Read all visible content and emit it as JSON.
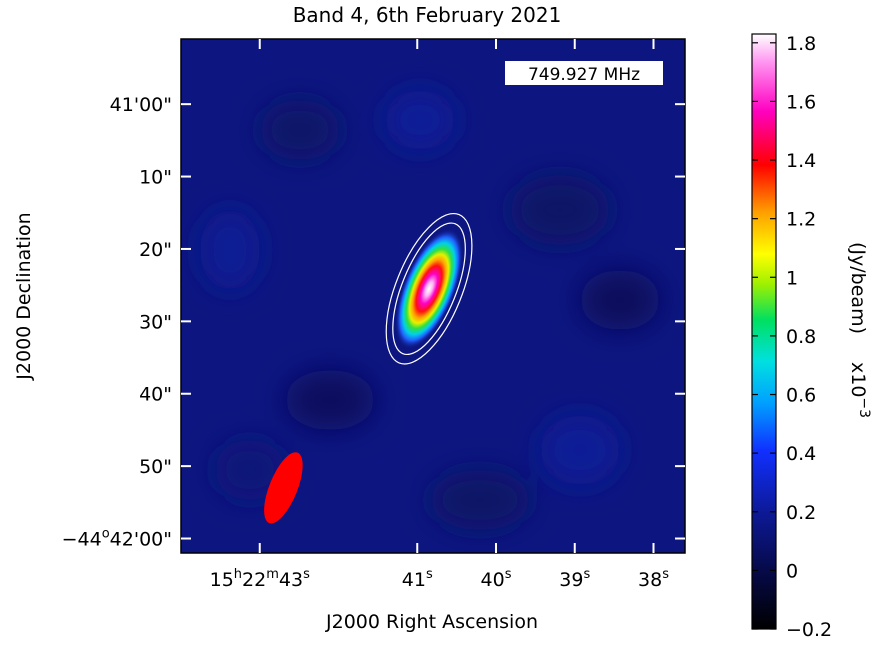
{
  "chart_data": {
    "type": "heatmap",
    "title": "Band 4, 6th February 2021",
    "annotation": "749.927 MHz",
    "xlabel": "J2000 Right Ascension",
    "ylabel": "J2000 Declination",
    "x_ticks": [
      {
        "h": "15",
        "m": "22",
        "s": "43",
        "value_sec": 43
      },
      {
        "s": "41",
        "value_sec": 41
      },
      {
        "s": "40",
        "value_sec": 40
      },
      {
        "s": "39",
        "value_sec": 39
      },
      {
        "s": "38",
        "value_sec": 38
      }
    ],
    "y_ticks": [
      {
        "label": "41'00\"",
        "value_arcsec": 0
      },
      {
        "label": "10\"",
        "value_arcsec": 10
      },
      {
        "label": "20\"",
        "value_arcsec": 20
      },
      {
        "label": "30\"",
        "value_arcsec": 30
      },
      {
        "label": "40\"",
        "value_arcsec": 40
      },
      {
        "label": "50\"",
        "value_arcsec": 50
      },
      {
        "label_deg": "−44",
        "label_deg_sup": "o",
        "label_rest": "42'00\"",
        "value_arcsec": 60
      }
    ],
    "x_range_sec": [
      44.0,
      37.6
    ],
    "y_range_arcsec": [
      -9,
      62
    ],
    "colorbar": {
      "label": "(Jy/beam)",
      "scale": "x10",
      "scale_exp": "−3",
      "range": [
        -0.2,
        1.83
      ],
      "ticks": [
        {
          "label": "1.8",
          "value": 1.8
        },
        {
          "label": "1.6",
          "value": 1.6
        },
        {
          "label": "1.4",
          "value": 1.4
        },
        {
          "label": "1.2",
          "value": 1.2
        },
        {
          "label": "1",
          "value": 1.0
        },
        {
          "label": "0.8",
          "value": 0.8
        },
        {
          "label": "0.6",
          "value": 0.6
        },
        {
          "label": "0.4",
          "value": 0.4
        },
        {
          "label": "0.2",
          "value": 0.2
        },
        {
          "label": "0",
          "value": 0.0
        },
        {
          "label": "−0.2",
          "value": -0.2
        }
      ]
    },
    "source": {
      "ra_sec": 40.85,
      "dec_arcsec": 25.5,
      "peak": 1.83
    },
    "beam": {
      "ra_sec": 42.7,
      "dec_arcsec": 53,
      "color": "#ff0000"
    },
    "contour_color": "#ffffff",
    "background_color": "#0d1680"
  }
}
